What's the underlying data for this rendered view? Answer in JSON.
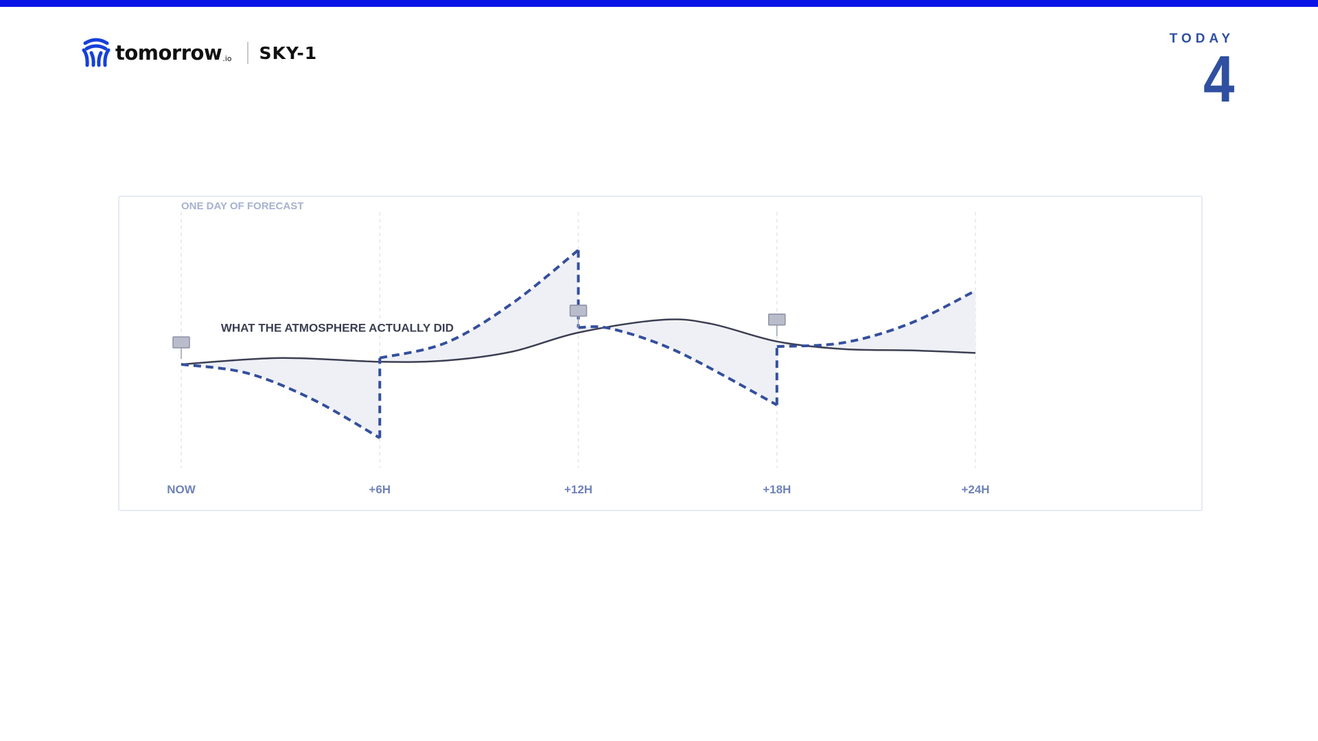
{
  "header": {
    "brand": "tomorrow",
    "brand_suffix": ".io",
    "product": "SKY-1"
  },
  "today": {
    "label": "TODAY",
    "value": "4"
  },
  "colors": {
    "top_bar": "#0a14e6",
    "accent": "#2f4fa0",
    "forecast_line": "#344f9c",
    "actual_line": "#3c3f52",
    "band_fill": "#eef0f6",
    "chart_border": "#e6eaf3"
  },
  "icons": {
    "logo": "tomorrow-io-logo-icon"
  },
  "chart_data": {
    "type": "line",
    "title": "ONE DAY OF FORECAST",
    "xlabel": "",
    "ylabel": "",
    "categories": [
      "NOW",
      "+6H",
      "+12H",
      "+18H",
      "+24H"
    ],
    "xlim": [
      0,
      24
    ],
    "ylim": [
      0,
      100
    ],
    "grid": "vertical-dashed",
    "annotations": [
      {
        "text": "WHAT THE ATMOSPHERE ACTUALLY DID",
        "x": 1.2,
        "y": 40
      }
    ],
    "series": [
      {
        "name": "WHAT THE ATMOSPHERE ACTUALLY DID",
        "style": "solid",
        "x": [
          0,
          3,
          6,
          8,
          10,
          12,
          14.5,
          16,
          18,
          20,
          22,
          24
        ],
        "y": [
          30,
          35,
          32,
          33,
          40,
          55,
          65,
          62,
          48,
          42,
          41,
          39
        ]
      },
      {
        "name": "",
        "style": "dashed",
        "segments": [
          {
            "x": [
              0,
              2,
              4,
              6
            ],
            "y": [
              30,
              23,
              2,
              -28
            ]
          },
          {
            "x": [
              6,
              8,
              10,
              12
            ],
            "y": [
              35,
              47,
              78,
              120
            ]
          },
          {
            "x": [
              12,
              13,
              15,
              18
            ],
            "y": [
              59,
              58,
              40,
              -2
            ]
          },
          {
            "x": [
              18,
              20,
              22,
              24
            ],
            "y": [
              44,
              47,
              62,
              88
            ]
          }
        ],
        "resets": [
          {
            "x": 6,
            "from": -28,
            "to": 35
          },
          {
            "x": 12,
            "from": 120,
            "to": 59
          },
          {
            "x": 18,
            "from": -2,
            "to": 44
          }
        ]
      }
    ],
    "markers": [
      {
        "x": 0,
        "y": 30
      },
      {
        "x": 12,
        "y": 55
      },
      {
        "x": 18,
        "y": 48
      }
    ]
  }
}
